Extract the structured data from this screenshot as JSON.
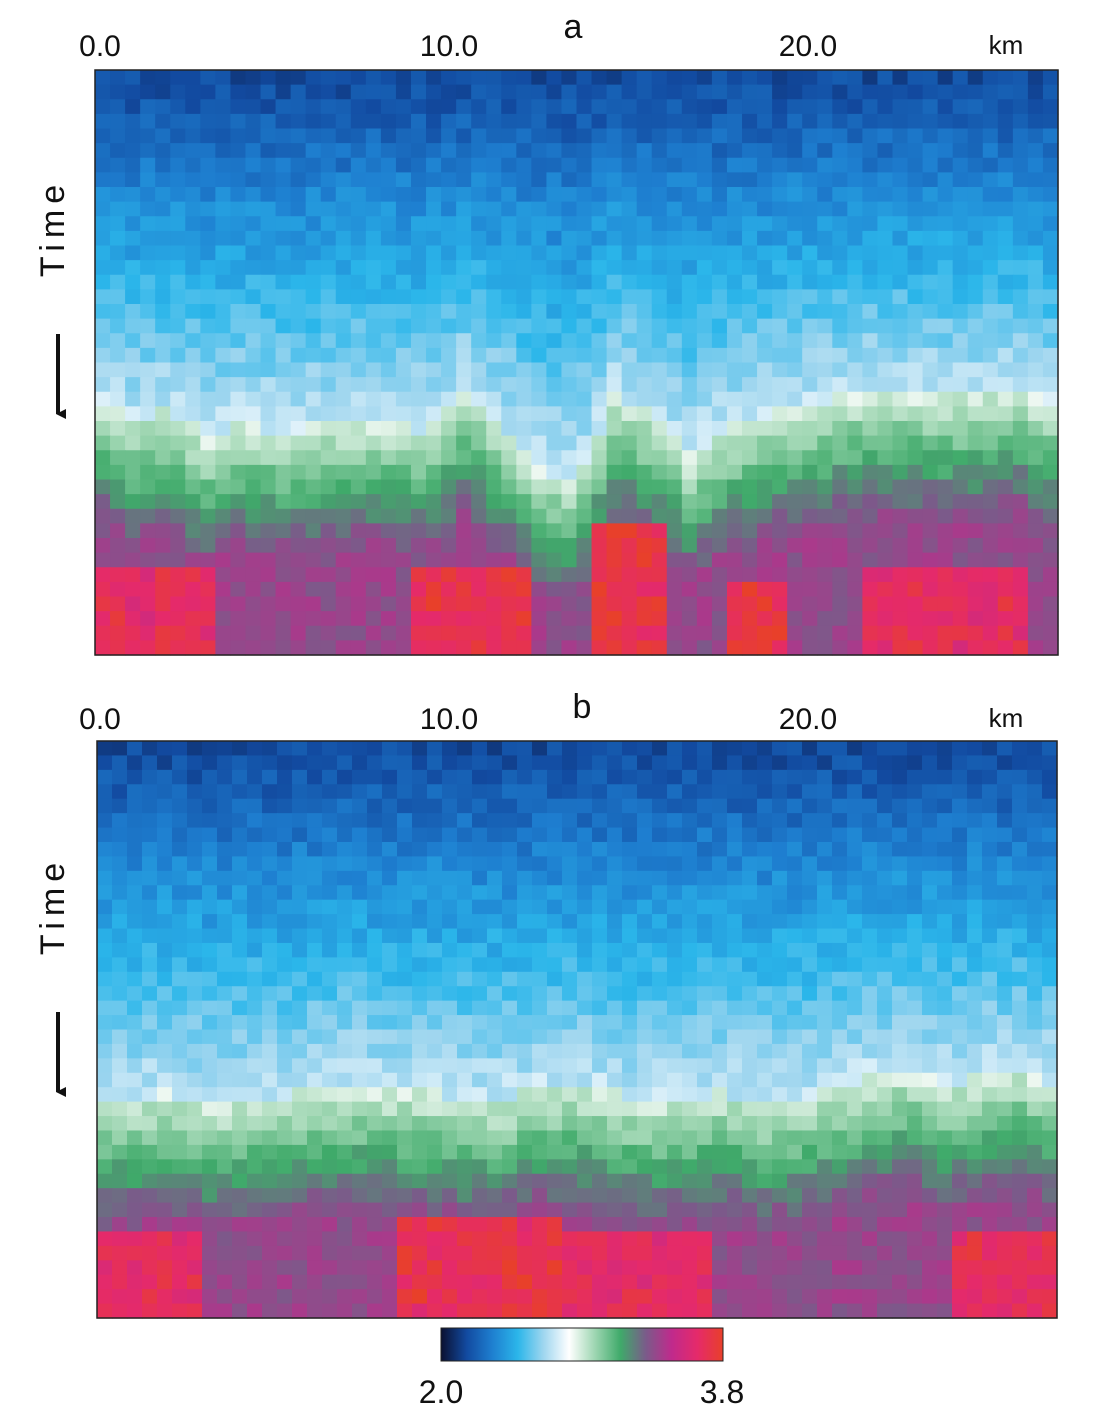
{
  "chart_data": [
    {
      "type": "heatmap",
      "panel_label": "a",
      "x_unit": "km",
      "x_ticks": [
        "0.0",
        "10.0",
        "20.0"
      ],
      "x_tick_values": [
        0.0,
        10.0,
        20.0
      ],
      "xlim": [
        0.0,
        26.8
      ],
      "ylabel": "Time",
      "y_direction": "down",
      "colorscale": "velocity",
      "boundary_depth": [
        0.56,
        0.6,
        0.58,
        0.63,
        0.6,
        0.62,
        0.61,
        0.6,
        0.6,
        0.62,
        0.55,
        0.61,
        0.68,
        0.7,
        0.56,
        0.59,
        0.66,
        0.62,
        0.59,
        0.58,
        0.56,
        0.55,
        0.55,
        0.56,
        0.55,
        0.54,
        0.58
      ],
      "high_zones": [
        {
          "x": [
            9.0,
            12.0
          ],
          "y": [
            0.86,
            1.0
          ],
          "level": 0.95
        },
        {
          "x": [
            14.0,
            15.8
          ],
          "y": [
            0.78,
            1.0
          ],
          "level": 0.98
        },
        {
          "x": [
            17.4,
            19.2
          ],
          "y": [
            0.88,
            1.0
          ],
          "level": 1.0
        },
        {
          "x": [
            0.0,
            3.5
          ],
          "y": [
            0.86,
            1.0
          ],
          "level": 0.82
        },
        {
          "x": [
            21.5,
            26.0
          ],
          "y": [
            0.86,
            1.0
          ],
          "level": 0.8
        }
      ]
    },
    {
      "type": "heatmap",
      "panel_label": "b",
      "x_unit": "km",
      "x_ticks": [
        "0.0",
        "10.0",
        "20.0"
      ],
      "x_tick_values": [
        0.0,
        10.0,
        20.0
      ],
      "xlim": [
        0.0,
        26.8
      ],
      "ylabel": "Time",
      "y_direction": "down",
      "colorscale": "velocity",
      "boundary_depth": [
        0.63,
        0.62,
        0.61,
        0.63,
        0.62,
        0.62,
        0.6,
        0.6,
        0.61,
        0.61,
        0.62,
        0.62,
        0.6,
        0.6,
        0.61,
        0.63,
        0.62,
        0.61,
        0.63,
        0.62,
        0.6,
        0.58,
        0.57,
        0.6,
        0.58,
        0.57,
        0.6
      ],
      "high_zones": [
        {
          "x": [
            8.5,
            12.8
          ],
          "y": [
            0.82,
            1.0
          ],
          "level": 0.93
        },
        {
          "x": [
            0.0,
            3.0
          ],
          "y": [
            0.84,
            1.0
          ],
          "level": 0.8
        },
        {
          "x": [
            13.0,
            17.0
          ],
          "y": [
            0.86,
            1.0
          ],
          "level": 0.78
        },
        {
          "x": [
            24.0,
            26.8
          ],
          "y": [
            0.84,
            1.0
          ],
          "level": 0.86
        }
      ]
    }
  ],
  "colorbar": {
    "min_label": "2.0",
    "max_label": "3.8",
    "min": 2.0,
    "max": 3.8,
    "stops": [
      "#0b1030",
      "#124aa0",
      "#1e7fd0",
      "#2bb6ea",
      "#9fd6ef",
      "#ffffff",
      "#9ed6b2",
      "#3faa6a",
      "#7b5a8a",
      "#c02a8c",
      "#e52a6a",
      "#e8402a"
    ]
  }
}
